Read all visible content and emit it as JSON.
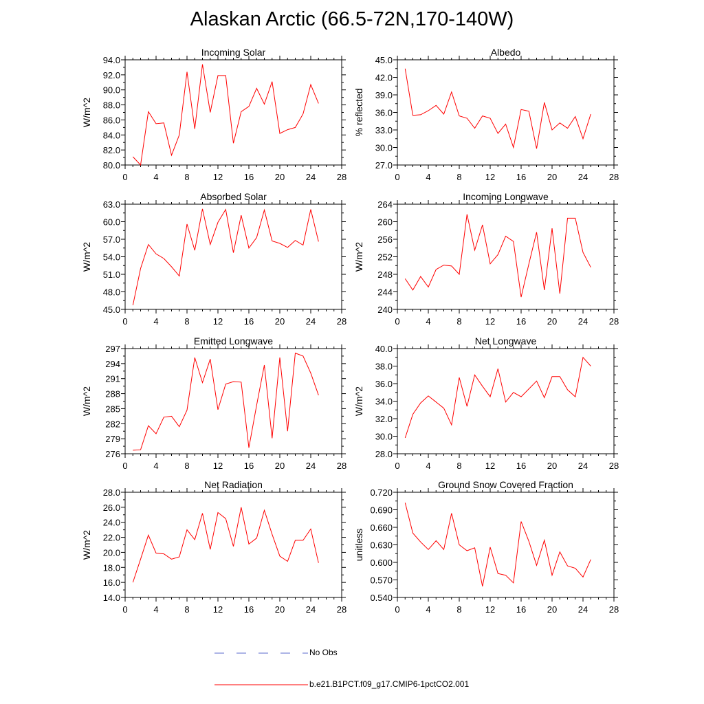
{
  "title": "Alaskan Arctic (66.5-72N,170-140W)",
  "colors": {
    "model": "#ff0000",
    "obs": "#5a6acd",
    "axis": "#000000"
  },
  "legend": {
    "obs_label": "No Obs",
    "model_label": "b.e21.B1PCT.f09_g17.CMIP6-1pctCO2.001"
  },
  "chart_data": [
    {
      "type": "line",
      "title": "Incoming Solar",
      "ylabel": "W/m^2",
      "xlabel": "",
      "xlim": [
        0,
        28
      ],
      "ylim": [
        80,
        94
      ],
      "xticks": [
        "0",
        "4",
        "8",
        "12",
        "16",
        "20",
        "24",
        "28"
      ],
      "yticks": [
        "80.0",
        "82.0",
        "84.0",
        "86.0",
        "88.0",
        "90.0",
        "92.0",
        "94.0"
      ],
      "series": [
        {
          "name": "b.e21.B1PCT.f09_g17.CMIP6-1pctCO2.001",
          "x": [
            1,
            2,
            3,
            4,
            5,
            6,
            7,
            8,
            9,
            10,
            11,
            12,
            13,
            14,
            15,
            16,
            17,
            18,
            19,
            20,
            21,
            22,
            23,
            24,
            25
          ],
          "y": [
            81.1,
            80.0,
            87.1,
            85.5,
            85.6,
            81.3,
            84.0,
            92.4,
            84.8,
            93.4,
            87.0,
            91.9,
            91.9,
            82.9,
            87.1,
            87.8,
            90.2,
            88.1,
            91.1,
            84.2,
            84.7,
            85.0,
            86.8,
            90.7,
            88.2
          ]
        }
      ]
    },
    {
      "type": "line",
      "title": "Albedo",
      "ylabel": "% reflected",
      "xlabel": "",
      "xlim": [
        0,
        28
      ],
      "ylim": [
        27,
        45
      ],
      "xticks": [
        "0",
        "4",
        "8",
        "12",
        "16",
        "20",
        "24",
        "28"
      ],
      "yticks": [
        "27.0",
        "30.0",
        "33.0",
        "36.0",
        "39.0",
        "42.0",
        "45.0"
      ],
      "series": [
        {
          "name": "b.e21.B1PCT.f09_g17.CMIP6-1pctCO2.001",
          "x": [
            1,
            2,
            3,
            4,
            5,
            6,
            7,
            8,
            9,
            10,
            11,
            12,
            13,
            14,
            15,
            16,
            17,
            18,
            19,
            20,
            21,
            22,
            23,
            24,
            25
          ],
          "y": [
            43.5,
            35.5,
            35.6,
            36.3,
            37.2,
            35.7,
            39.5,
            35.4,
            35.0,
            33.3,
            35.4,
            35.0,
            32.4,
            34.0,
            30.0,
            36.5,
            36.2,
            29.8,
            37.7,
            33.0,
            34.2,
            33.3,
            35.3,
            31.5,
            35.7
          ]
        }
      ]
    },
    {
      "type": "line",
      "title": "Absorbed Solar",
      "ylabel": "W/m^2",
      "xlabel": "",
      "xlim": [
        0,
        28
      ],
      "ylim": [
        45,
        63
      ],
      "xticks": [
        "0",
        "4",
        "8",
        "12",
        "16",
        "20",
        "24",
        "28"
      ],
      "yticks": [
        "45.0",
        "48.0",
        "51.0",
        "54.0",
        "57.0",
        "60.0",
        "63.0"
      ],
      "series": [
        {
          "name": "b.e21.B1PCT.f09_g17.CMIP6-1pctCO2.001",
          "x": [
            1,
            2,
            3,
            4,
            5,
            6,
            7,
            8,
            9,
            10,
            11,
            12,
            13,
            14,
            15,
            16,
            17,
            18,
            19,
            20,
            21,
            22,
            23,
            24,
            25
          ],
          "y": [
            45.7,
            52.0,
            56.1,
            54.5,
            53.7,
            52.3,
            50.7,
            59.6,
            55.1,
            62.2,
            56.1,
            59.9,
            62.1,
            54.7,
            61.1,
            55.5,
            57.3,
            62.0,
            56.7,
            56.3,
            55.6,
            56.8,
            56.0,
            62.1,
            56.6
          ]
        }
      ]
    },
    {
      "type": "line",
      "title": "Incoming Longwave",
      "ylabel": "W/m^2",
      "xlabel": "",
      "xlim": [
        0,
        28
      ],
      "ylim": [
        240,
        264
      ],
      "xticks": [
        "0",
        "4",
        "8",
        "12",
        "16",
        "20",
        "24",
        "28"
      ],
      "yticks": [
        "240",
        "244",
        "248",
        "252",
        "256",
        "260",
        "264"
      ],
      "series": [
        {
          "name": "b.e21.B1PCT.f09_g17.CMIP6-1pctCO2.001",
          "x": [
            1,
            2,
            3,
            4,
            5,
            6,
            7,
            8,
            9,
            10,
            11,
            12,
            13,
            14,
            15,
            16,
            17,
            18,
            19,
            20,
            21,
            22,
            23,
            24,
            25
          ],
          "y": [
            247.0,
            244.4,
            247.5,
            245.1,
            249.1,
            250.1,
            249.9,
            248.0,
            261.7,
            253.5,
            259.3,
            250.4,
            252.5,
            256.7,
            255.5,
            242.8,
            250.4,
            257.6,
            244.4,
            258.5,
            243.6,
            260.8,
            260.8,
            253.0,
            249.6
          ]
        }
      ]
    },
    {
      "type": "line",
      "title": "Emitted Longwave",
      "ylabel": "W/m^2",
      "xlabel": "",
      "xlim": [
        0,
        28
      ],
      "ylim": [
        276,
        297
      ],
      "xticks": [
        "0",
        "4",
        "8",
        "12",
        "16",
        "20",
        "24",
        "28"
      ],
      "yticks": [
        "276",
        "279",
        "282",
        "285",
        "288",
        "291",
        "294",
        "297"
      ],
      "series": [
        {
          "name": "b.e21.B1PCT.f09_g17.CMIP6-1pctCO2.001",
          "x": [
            1,
            2,
            3,
            4,
            5,
            6,
            7,
            8,
            9,
            10,
            11,
            12,
            13,
            14,
            15,
            16,
            17,
            18,
            19,
            20,
            21,
            22,
            23,
            24,
            25
          ],
          "y": [
            276.7,
            276.8,
            281.6,
            280.0,
            283.3,
            283.5,
            281.4,
            284.7,
            295.2,
            290.2,
            294.9,
            284.8,
            289.9,
            290.4,
            290.3,
            277.2,
            285.7,
            293.7,
            279.1,
            295.2,
            280.5,
            296.1,
            295.5,
            292.1,
            287.7
          ]
        }
      ]
    },
    {
      "type": "line",
      "title": "Net Longwave",
      "ylabel": "W/m^2",
      "xlabel": "",
      "xlim": [
        0,
        28
      ],
      "ylim": [
        28,
        40
      ],
      "xticks": [
        "0",
        "4",
        "8",
        "12",
        "16",
        "20",
        "24",
        "28"
      ],
      "yticks": [
        "28.0",
        "30.0",
        "32.0",
        "34.0",
        "36.0",
        "38.0",
        "40.0"
      ],
      "series": [
        {
          "name": "b.e21.B1PCT.f09_g17.CMIP6-1pctCO2.001",
          "x": [
            1,
            2,
            3,
            4,
            5,
            6,
            7,
            8,
            9,
            10,
            11,
            12,
            13,
            14,
            15,
            16,
            17,
            18,
            19,
            20,
            21,
            22,
            23,
            24,
            25
          ],
          "y": [
            29.8,
            32.5,
            33.8,
            34.6,
            33.9,
            33.2,
            31.3,
            36.7,
            33.4,
            37.0,
            35.7,
            34.5,
            37.7,
            33.9,
            35.0,
            34.5,
            35.4,
            36.3,
            34.4,
            36.8,
            36.8,
            35.3,
            34.5,
            39.0,
            38.0
          ]
        }
      ]
    },
    {
      "type": "line",
      "title": "Net Radiation",
      "ylabel": "W/m^2",
      "xlabel": "",
      "xlim": [
        0,
        28
      ],
      "ylim": [
        14,
        28
      ],
      "xticks": [
        "0",
        "4",
        "8",
        "12",
        "16",
        "20",
        "24",
        "28"
      ],
      "yticks": [
        "14.0",
        "16.0",
        "18.0",
        "20.0",
        "22.0",
        "24.0",
        "26.0",
        "28.0"
      ],
      "series": [
        {
          "name": "b.e21.B1PCT.f09_g17.CMIP6-1pctCO2.001",
          "x": [
            1,
            2,
            3,
            4,
            5,
            6,
            7,
            8,
            9,
            10,
            11,
            12,
            13,
            14,
            15,
            16,
            17,
            18,
            19,
            20,
            21,
            22,
            23,
            24,
            25
          ],
          "y": [
            16.0,
            19.1,
            22.3,
            19.9,
            19.8,
            19.1,
            19.4,
            23.0,
            21.7,
            25.2,
            20.4,
            25.3,
            24.5,
            20.8,
            26.0,
            21.1,
            21.9,
            25.6,
            22.4,
            19.5,
            18.8,
            21.6,
            21.6,
            23.1,
            18.6
          ]
        }
      ]
    },
    {
      "type": "line",
      "title": "Ground Snow Covered Fraction",
      "ylabel": "unitless",
      "xlabel": "",
      "xlim": [
        0,
        28
      ],
      "ylim": [
        0.54,
        0.72
      ],
      "xticks": [
        "0",
        "4",
        "8",
        "12",
        "16",
        "20",
        "24",
        "28"
      ],
      "yticks": [
        "0.540",
        "0.570",
        "0.600",
        "0.630",
        "0.660",
        "0.690",
        "0.720"
      ],
      "series": [
        {
          "name": "b.e21.B1PCT.f09_g17.CMIP6-1pctCO2.001",
          "x": [
            1,
            2,
            3,
            4,
            5,
            6,
            7,
            8,
            9,
            10,
            11,
            12,
            13,
            14,
            15,
            16,
            17,
            18,
            19,
            20,
            21,
            22,
            23,
            24,
            25
          ],
          "y": [
            0.702,
            0.65,
            0.635,
            0.622,
            0.637,
            0.622,
            0.684,
            0.63,
            0.62,
            0.625,
            0.559,
            0.626,
            0.581,
            0.578,
            0.565,
            0.67,
            0.636,
            0.595,
            0.638,
            0.578,
            0.618,
            0.594,
            0.59,
            0.575,
            0.605
          ]
        }
      ]
    }
  ]
}
